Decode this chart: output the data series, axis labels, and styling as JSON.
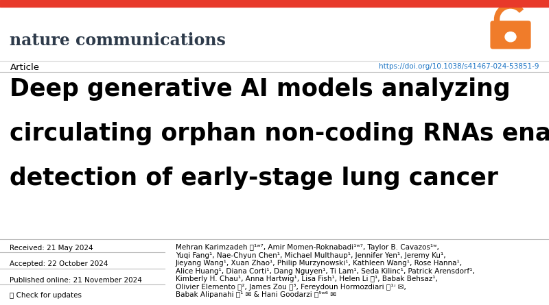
{
  "bg_color": "#ffffff",
  "top_bar_color": "#e8392a",
  "journal_name": "nature communications",
  "journal_color": "#2d3a4a",
  "journal_fontsize": 17,
  "open_access_color": "#f07c2a",
  "article_label": "Article",
  "article_color": "#000000",
  "article_fontsize": 9.5,
  "doi_text": "https://doi.org/10.1038/s41467-024-53851-9",
  "doi_color": "#1a73c4",
  "doi_fontsize": 7.5,
  "title_line1": "Deep generative AI models analyzing",
  "title_line2": "circulating orphan non-coding RNAs enable",
  "title_line3": "detection of early-stage lung cancer",
  "title_color": "#000000",
  "title_fontsize": 25,
  "divider_color": "#bbbbbb",
  "received_label": "Received: 21 May 2024",
  "accepted_label": "Accepted: 22 October 2024",
  "published_label": "Published online: 21 November 2024",
  "check_updates": "🔎 Check for updates",
  "dates_color": "#000000",
  "dates_fontsize": 7.5,
  "authors_line1": "Mehran Karimzadeh ⓘ¹ʷ⁷, Amir Momen-Roknabadi¹ʷ⁷, Taylor B. Cavazos¹ʷ,",
  "authors_line2": "Yuqi Fang¹, Nae-Chyun Chen¹, Michael Multhaup¹, Jennifer Yen¹, Jeremy Ku¹,",
  "authors_line3": "Jieyang Wang¹, Xuan Zhao¹, Philip Murzynowski¹, Kathleen Wang¹, Rose Hanna¹,",
  "authors_line4": "Alice Huang¹, Diana Corti¹, Dang Nguyen¹, Ti Lam¹, Seda Kilinc¹, Patrick Arensdorf¹,",
  "authors_line5": "Kimberly H. Chau¹, Anna Hartwig¹, Lisa Fish¹, Helen Li ⓘ¹, Babak Behsaz¹,",
  "authors_line6": "Olivier Elemento ⓘ², James Zou ⓘ³, Fereydoun Hormozdiari ⓘ¹ʴ ✉,",
  "authors_line7": "Babak Alipanahi ⓘ¹ ✉ & Hani Goodarzi ⓘ⁵ʷ⁶ ✉",
  "authors_color": "#000000",
  "authors_fontsize": 7.5
}
